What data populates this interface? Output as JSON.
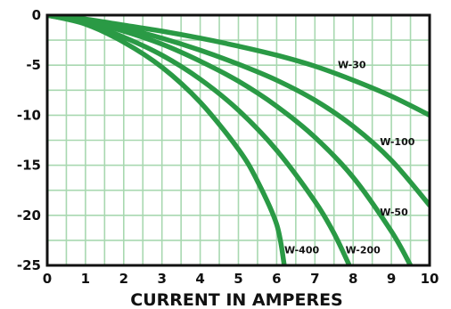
{
  "chart_data": {
    "type": "line",
    "title": "",
    "xlabel": "CURRENT IN AMPERES",
    "ylabel": "",
    "xlim": [
      0,
      10
    ],
    "ylim": [
      -25,
      0
    ],
    "grid": true,
    "x_ticks": [
      "0",
      "1",
      "2",
      "3",
      "4",
      "5",
      "6",
      "7",
      "8",
      "9",
      "10"
    ],
    "y_ticks": [
      "0",
      "-5",
      "-10",
      "-15",
      "-20",
      "-25"
    ],
    "line_color": "#2a9a45",
    "grid_color": "#a8d8b0",
    "series": [
      {
        "name": "W-30",
        "x": [
          0,
          1,
          2,
          3,
          4,
          5,
          6,
          7,
          8,
          9,
          10
        ],
        "y": [
          0,
          -0.4,
          -1.0,
          -1.6,
          -2.3,
          -3.1,
          -4.0,
          -5.1,
          -6.5,
          -8.1,
          -10.0
        ]
      },
      {
        "name": "W-100",
        "x": [
          0,
          1,
          2,
          3,
          4,
          5,
          6,
          7,
          8,
          9,
          10
        ],
        "y": [
          0,
          -0.5,
          -1.3,
          -2.3,
          -3.5,
          -4.9,
          -6.5,
          -8.5,
          -11.1,
          -14.5,
          -19.0
        ]
      },
      {
        "name": "W-50",
        "x": [
          0,
          1,
          2,
          3,
          4,
          5,
          6,
          7,
          8,
          9,
          9.5
        ],
        "y": [
          0,
          -0.6,
          -1.6,
          -2.9,
          -4.6,
          -6.6,
          -9.1,
          -12.2,
          -16.2,
          -21.6,
          -25.0
        ]
      },
      {
        "name": "W-200",
        "x": [
          0,
          1,
          2,
          3,
          4,
          5,
          6,
          7,
          7.5,
          7.9
        ],
        "y": [
          0,
          -0.8,
          -2.2,
          -4.0,
          -6.4,
          -9.5,
          -13.5,
          -18.6,
          -21.8,
          -25.0
        ]
      },
      {
        "name": "W-400",
        "x": [
          0,
          1,
          2,
          3,
          4,
          5,
          5.5,
          6.0,
          6.2
        ],
        "y": [
          0,
          -0.9,
          -2.7,
          -5.2,
          -8.7,
          -13.4,
          -16.6,
          -20.9,
          -25.0
        ]
      }
    ],
    "series_labels": [
      {
        "name": "W-30",
        "x": 7.6,
        "y": -5.3
      },
      {
        "name": "W-100",
        "x": 8.7,
        "y": -13.0
      },
      {
        "name": "W-50",
        "x": 8.7,
        "y": -20.0
      },
      {
        "name": "W-200",
        "x": 7.8,
        "y": -23.8
      },
      {
        "name": "W-400",
        "x": 6.2,
        "y": -23.8
      }
    ]
  }
}
